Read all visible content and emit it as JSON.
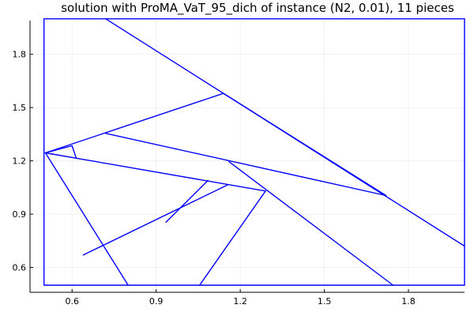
{
  "chart_data": {
    "type": "line",
    "title": "solution with ProMA_VaT_95_dich of instance (N2, 0.01), 11 pieces",
    "xlabel": "",
    "ylabel": "",
    "xlim": [
      0.45,
      2.0
    ],
    "ylim": [
      0.46,
      1.99
    ],
    "grid": true,
    "legend": "none",
    "line_color": "#0000ff",
    "x_ticks": [
      {
        "value": 0.6,
        "label": "0.6"
      },
      {
        "value": 0.9,
        "label": "0.9"
      },
      {
        "value": 1.2,
        "label": "1.2"
      },
      {
        "value": 1.5,
        "label": "1.5"
      },
      {
        "value": 1.8,
        "label": "1.8"
      }
    ],
    "y_ticks": [
      {
        "value": 0.6,
        "label": "0.6"
      },
      {
        "value": 0.9,
        "label": "0.9"
      },
      {
        "value": 1.2,
        "label": "1.2"
      },
      {
        "value": 1.5,
        "label": "1.5"
      },
      {
        "value": 1.8,
        "label": "1.8"
      }
    ],
    "segments": [
      {
        "x": [
          0.5,
          2.0,
          2.0,
          0.5,
          0.5
        ],
        "y": [
          0.5,
          0.5,
          2.0,
          2.0,
          0.5
        ]
      },
      {
        "x": [
          0.72,
          2.0
        ],
        "y": [
          2.0,
          0.72
        ]
      },
      {
        "x": [
          0.505,
          1.14
        ],
        "y": [
          1.245,
          1.58
        ]
      },
      {
        "x": [
          0.505,
          0.8
        ],
        "y": [
          1.245,
          0.5
        ]
      },
      {
        "x": [
          0.505,
          0.6
        ],
        "y": [
          1.245,
          1.285
        ]
      },
      {
        "x": [
          0.6,
          0.615
        ],
        "y": [
          1.285,
          1.215
        ]
      },
      {
        "x": [
          0.505,
          1.29
        ],
        "y": [
          1.245,
          1.03
        ]
      },
      {
        "x": [
          0.72,
          1.72
        ],
        "y": [
          1.355,
          1.005
        ]
      },
      {
        "x": [
          1.14,
          1.72
        ],
        "y": [
          1.58,
          1.005
        ]
      },
      {
        "x": [
          1.16,
          1.745
        ],
        "y": [
          1.195,
          0.5
        ]
      },
      {
        "x": [
          0.64,
          1.155
        ],
        "y": [
          0.67,
          1.065
        ]
      },
      {
        "x": [
          0.935,
          1.085
        ],
        "y": [
          0.855,
          1.09
        ]
      },
      {
        "x": [
          1.055,
          1.29
        ],
        "y": [
          0.5,
          1.03
        ]
      }
    ]
  }
}
